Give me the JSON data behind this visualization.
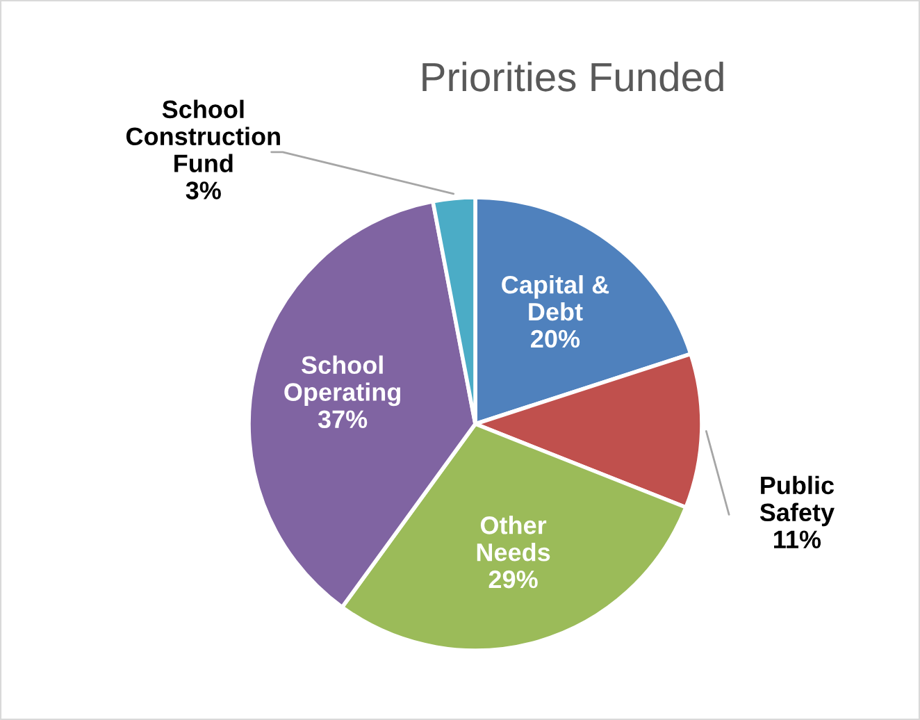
{
  "chart_data": {
    "type": "pie",
    "title": "Priorities Funded",
    "categories": [
      "Capital &\nDebt",
      "Public\nSafety",
      "Other\nNeeds",
      "School\nOperating",
      "School\nConstruction\nFund"
    ],
    "values": [
      20,
      11,
      29,
      37,
      3
    ],
    "colors": [
      "#4f81bd",
      "#c0504d",
      "#9bbb59",
      "#8064a2",
      "#4bacc6"
    ],
    "value_labels": [
      "20%",
      "11%",
      "29%",
      "37%",
      "3%"
    ],
    "legend": false
  }
}
